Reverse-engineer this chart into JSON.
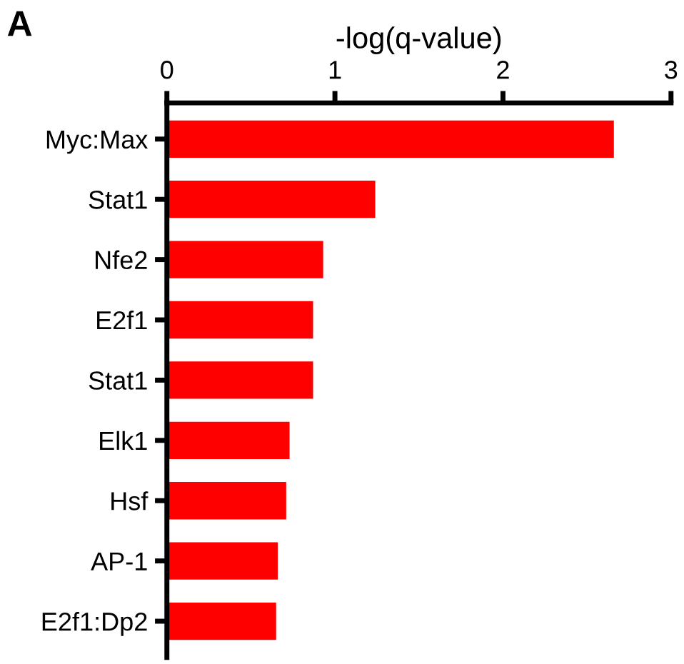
{
  "chart_data": {
    "type": "bar",
    "orientation": "horizontal",
    "xlabel": "-log(q-value)",
    "annotations": [
      "A"
    ],
    "categories": [
      "Myc:Max",
      "Stat1",
      "Nfe2",
      "E2f1",
      "Stat1",
      "Elk1",
      "Hsf",
      "AP-1",
      "E2f1:Dp2"
    ],
    "values": [
      2.66,
      1.24,
      0.93,
      0.87,
      0.87,
      0.73,
      0.71,
      0.66,
      0.65
    ],
    "color": "#ff0000",
    "xlim": [
      0,
      3
    ],
    "xticks": [
      0,
      1,
      2,
      3
    ],
    "grid": false
  }
}
